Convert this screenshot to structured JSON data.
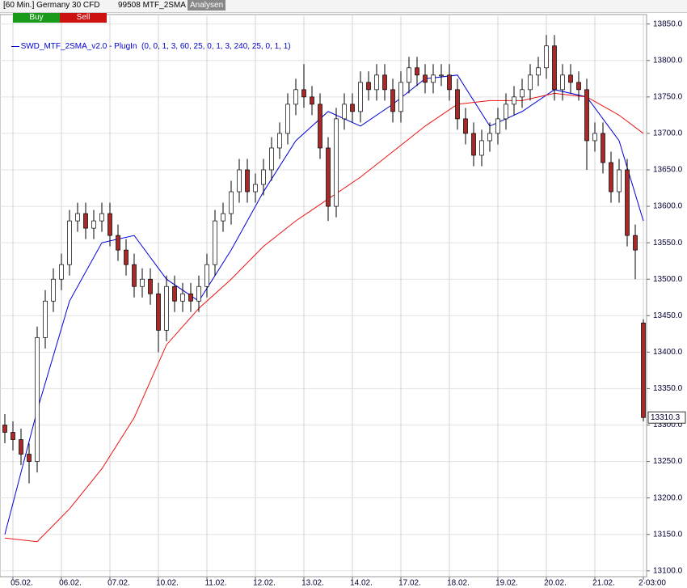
{
  "header": {
    "instrument": "[60 Min.] Germany 30 CFD",
    "strategy": "99508 MTF_2SMA",
    "analysis_button": "Analysen",
    "buy_button": "Buy",
    "sell_button": "Sell"
  },
  "chart_data": {
    "type": "candlestick",
    "legend_text": "SWD_MTF_2SMA_v2.0 - PlugIn  (0, 0, 1, 3, 60, 25, 0, 1, 3, 240, 25, 0, 1, 1)",
    "legend_color": "#0000cc",
    "up_color": "#ffffff",
    "down_color": "#a52a2a",
    "x": [
      -1,
      0,
      1,
      2,
      3,
      4,
      5,
      6,
      7,
      8,
      9,
      10,
      11,
      12,
      13,
      14,
      15,
      16,
      17,
      18,
      19,
      20,
      21,
      22,
      23,
      24,
      25,
      26,
      27,
      28,
      29,
      30,
      31,
      32,
      33,
      34,
      35,
      36,
      37,
      38,
      39,
      40,
      41,
      42,
      43,
      44,
      45,
      46,
      47,
      48,
      49,
      50,
      51,
      52,
      53,
      54,
      55,
      56,
      57,
      58,
      59,
      60,
      61,
      62,
      63,
      64,
      65,
      66,
      67,
      68,
      69,
      70,
      71,
      72,
      73,
      74,
      75,
      76,
      77,
      78
    ],
    "open": [
      13300,
      13290,
      13280,
      13260,
      13250,
      13420,
      13470,
      13500,
      13520,
      13580,
      13590,
      13570,
      13580,
      13590,
      13560,
      13540,
      13520,
      13490,
      13500,
      13480,
      13430,
      13490,
      13470,
      13480,
      13470,
      13490,
      13520,
      13580,
      13590,
      13620,
      13650,
      13620,
      13630,
      13650,
      13680,
      13700,
      13740,
      13760,
      13750,
      13740,
      13680,
      13600,
      13720,
      13740,
      13730,
      13770,
      13760,
      13780,
      13760,
      13730,
      13770,
      13790,
      13780,
      13770,
      13780,
      13780,
      13760,
      13720,
      13700,
      13670,
      13690,
      13700,
      13720,
      13740,
      13750,
      13760,
      13780,
      13790,
      13820,
      13760,
      13780,
      13770,
      13760,
      13690,
      13700,
      13660,
      13620,
      13650,
      13560,
      13440
    ],
    "high": [
      13315,
      13305,
      13295,
      13275,
      13435,
      13485,
      13515,
      13535,
      13595,
      13605,
      13605,
      13595,
      13605,
      13605,
      13575,
      13555,
      13535,
      13515,
      13515,
      13495,
      13505,
      13505,
      13495,
      13495,
      13505,
      13535,
      13595,
      13605,
      13635,
      13665,
      13665,
      13645,
      13665,
      13695,
      13715,
      13755,
      13775,
      13795,
      13765,
      13755,
      13695,
      13735,
      13755,
      13755,
      13785,
      13785,
      13795,
      13795,
      13775,
      13785,
      13805,
      13805,
      13795,
      13795,
      13795,
      13795,
      13775,
      13735,
      13715,
      13705,
      13715,
      13735,
      13755,
      13765,
      13775,
      13795,
      13805,
      13835,
      13835,
      13795,
      13795,
      13785,
      13775,
      13715,
      13715,
      13675,
      13665,
      13665,
      13575,
      13445
    ],
    "low": [
      13275,
      13265,
      13245,
      13220,
      13235,
      13405,
      13455,
      13485,
      13505,
      13565,
      13555,
      13555,
      13565,
      13545,
      13525,
      13505,
      13475,
      13475,
      13465,
      13400,
      13415,
      13455,
      13455,
      13455,
      13455,
      13475,
      13505,
      13565,
      13575,
      13605,
      13605,
      13605,
      13615,
      13635,
      13665,
      13685,
      13725,
      13735,
      13725,
      13665,
      13580,
      13585,
      13705,
      13715,
      13715,
      13745,
      13745,
      13745,
      13715,
      13715,
      13755,
      13765,
      13755,
      13755,
      13765,
      13745,
      13705,
      13685,
      13655,
      13655,
      13675,
      13685,
      13705,
      13725,
      13735,
      13745,
      13765,
      13775,
      13745,
      13745,
      13755,
      13745,
      13650,
      13675,
      13645,
      13605,
      13605,
      13545,
      13500,
      13305
    ],
    "close": [
      13290,
      13280,
      13260,
      13250,
      13420,
      13470,
      13500,
      13520,
      13580,
      13590,
      13570,
      13580,
      13590,
      13560,
      13540,
      13520,
      13490,
      13500,
      13480,
      13430,
      13490,
      13470,
      13480,
      13470,
      13490,
      13520,
      13580,
      13590,
      13620,
      13650,
      13620,
      13630,
      13650,
      13680,
      13700,
      13740,
      13760,
      13750,
      13740,
      13680,
      13600,
      13720,
      13740,
      13730,
      13770,
      13760,
      13780,
      13760,
      13730,
      13770,
      13790,
      13780,
      13770,
      13780,
      13780,
      13760,
      13720,
      13700,
      13670,
      13690,
      13700,
      13720,
      13740,
      13750,
      13760,
      13780,
      13790,
      13820,
      13760,
      13780,
      13770,
      13760,
      13690,
      13700,
      13660,
      13620,
      13650,
      13560,
      13540,
      13310.3
    ],
    "lines": [
      {
        "color": "#0000dd",
        "x": [
          -1,
          3,
          7,
          11,
          15,
          19,
          23,
          27,
          31,
          35,
          39,
          43,
          47,
          51,
          55,
          59,
          63,
          67,
          71,
          75,
          78
        ],
        "values": [
          13150,
          13320,
          13470,
          13550,
          13560,
          13500,
          13470,
          13540,
          13620,
          13690,
          13730,
          13710,
          13740,
          13775,
          13780,
          13710,
          13730,
          13760,
          13750,
          13690,
          13580
        ]
      },
      {
        "color": "#ee1111",
        "x": [
          -1,
          3,
          7,
          11,
          15,
          19,
          23,
          27,
          31,
          35,
          39,
          43,
          47,
          51,
          55,
          59,
          63,
          67,
          71,
          75,
          78
        ],
        "values": [
          13145,
          13140,
          13185,
          13240,
          13310,
          13410,
          13460,
          13500,
          13545,
          13580,
          13610,
          13640,
          13675,
          13710,
          13740,
          13745,
          13745,
          13755,
          13750,
          13725,
          13700
        ]
      }
    ],
    "last_price": 13310.3,
    "xlim": [
      -1.6,
      78.4
    ],
    "xticks": [
      {
        "value": 0,
        "label": "05.02."
      },
      {
        "value": 6,
        "label": "06.02."
      },
      {
        "value": 12,
        "label": "07.02."
      },
      {
        "value": 18,
        "label": "10.02."
      },
      {
        "value": 24,
        "label": "11.02."
      },
      {
        "value": 30,
        "label": "12.02."
      },
      {
        "value": 36,
        "label": "13.02."
      },
      {
        "value": 42,
        "label": "14.02."
      },
      {
        "value": 48,
        "label": "17.02."
      },
      {
        "value": 54,
        "label": "18.02."
      },
      {
        "value": 60,
        "label": "19.02."
      },
      {
        "value": 66,
        "label": "20.02."
      },
      {
        "value": 72,
        "label": "21.02."
      },
      {
        "value": 78,
        "label": "2·03:00"
      }
    ],
    "ylim": [
      13092,
      13863
    ],
    "yticks": [
      {
        "value": 13100,
        "label": "13100.0"
      },
      {
        "value": 13150,
        "label": "13150.0"
      },
      {
        "value": 13200,
        "label": "13200.0"
      },
      {
        "value": 13250,
        "label": "13250.0"
      },
      {
        "value": 13300,
        "label": "13300.0"
      },
      {
        "value": 13350,
        "label": "13350.0"
      },
      {
        "value": 13400,
        "label": "13400.0"
      },
      {
        "value": 13450,
        "label": "13450.0"
      },
      {
        "value": 13500,
        "label": "13500.0"
      },
      {
        "value": 13550,
        "label": "13550.0"
      },
      {
        "value": 13600,
        "label": "13600.0"
      },
      {
        "value": 13650,
        "label": "13650.0"
      },
      {
        "value": 13700,
        "label": "13700.0"
      },
      {
        "value": 13750,
        "label": "13750.0"
      },
      {
        "value": 13800,
        "label": "13800.0"
      },
      {
        "value": 13850,
        "label": "13850.0"
      }
    ],
    "grid": true
  }
}
